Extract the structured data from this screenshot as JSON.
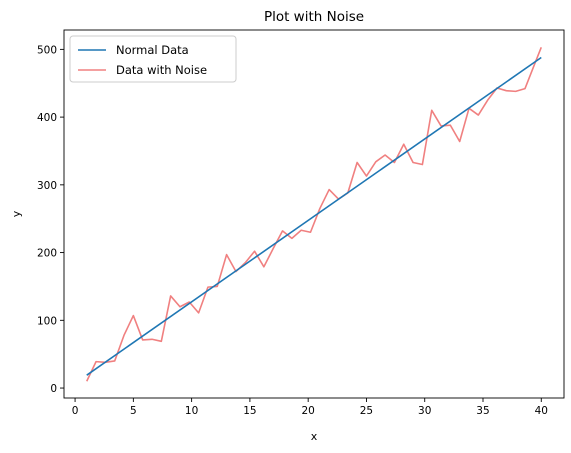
{
  "chart_data": {
    "type": "line",
    "title": "Plot with Noise",
    "xlabel": "x",
    "ylabel": "y",
    "xlim": [
      -0.95,
      41.95
    ],
    "ylim": [
      -14.7,
      528.6
    ],
    "xticks": [
      0,
      5,
      10,
      15,
      20,
      25,
      30,
      35,
      40
    ],
    "yticks": [
      0,
      100,
      200,
      300,
      400,
      500
    ],
    "grid": false,
    "legend": "top-left",
    "series": [
      {
        "name": "Normal Data",
        "color": "#1f77b4",
        "x": [
          1,
          40
        ],
        "y": [
          19,
          488
        ]
      },
      {
        "name": "Data with Noise",
        "color": "#f08080",
        "x": [
          1,
          1.8,
          2.6,
          3.4,
          4.2,
          5,
          5.8,
          6.6,
          7.4,
          8.2,
          9,
          9.8,
          10.6,
          11.4,
          12.2,
          13,
          13.8,
          14.6,
          15.4,
          16.2,
          17,
          17.8,
          18.6,
          19.4,
          20.2,
          21,
          21.8,
          22.6,
          23.4,
          24.2,
          25,
          25.8,
          26.6,
          27.4,
          28.2,
          29,
          29.8,
          30.6,
          31.4,
          32.2,
          33,
          33.8,
          34.6,
          35.4,
          36.2,
          37,
          37.8,
          38.6,
          39.4,
          40
        ],
        "y": [
          10,
          39,
          38,
          40,
          78,
          107,
          71,
          72,
          69,
          136,
          120,
          127,
          111,
          149,
          150,
          197,
          172,
          185,
          202,
          179,
          206,
          232,
          221,
          233,
          230,
          265,
          293,
          279,
          288,
          333,
          313,
          334,
          344,
          333,
          360,
          333,
          330,
          410,
          387,
          388,
          364,
          413,
          403,
          425,
          443,
          439,
          438,
          442,
          477,
          503
        ]
      }
    ]
  }
}
